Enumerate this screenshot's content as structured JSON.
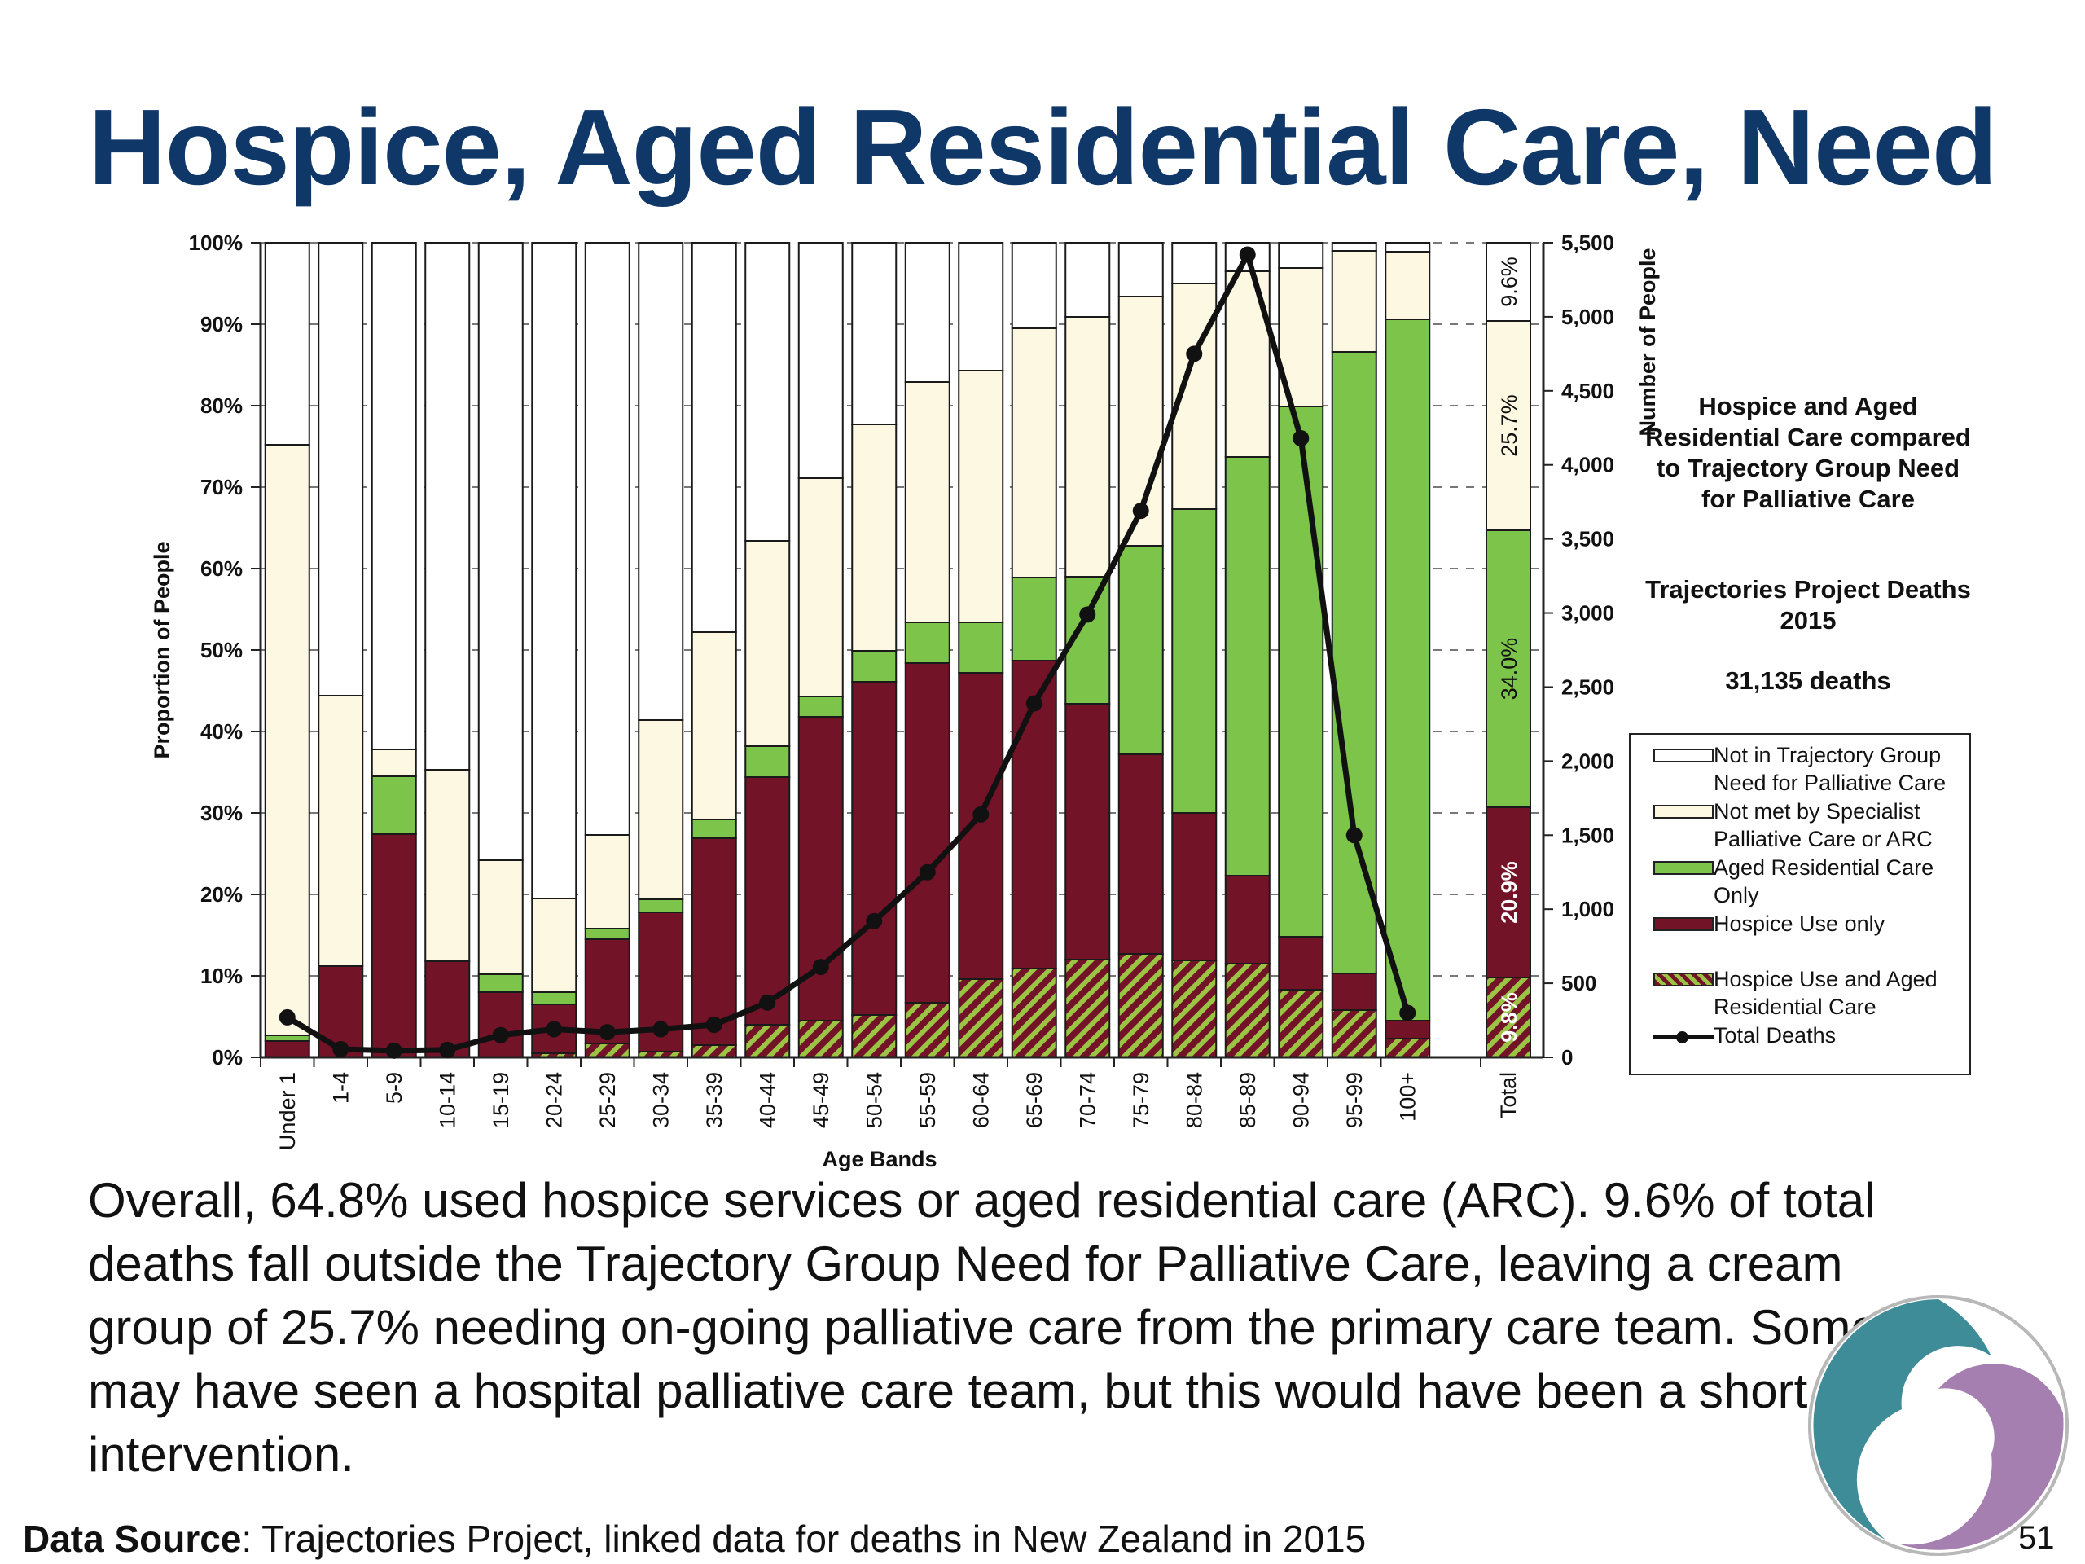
{
  "slide": {
    "title": "Hospice, Aged Residential Care, Need",
    "body_text": "Overall, 64.8% used hospice services or aged residential care (ARC). 9.6% of total deaths fall outside the Trajectory Group Need for Palliative Care, leaving a cream group of 25.7% needing on-going palliative care from the primary care team. Some may have seen a hospital palliative care team, but this would have been a short intervention.",
    "source_label": "Data Source",
    "source_text": ": Trajectories Project, linked data for deaths in New Zealand in 2015",
    "page_number": "51"
  },
  "side_panel": {
    "title": "Hospice and Aged Residential Care compared to Trajectory Group Need for Palliative Care",
    "subtitle": "Trajectories Project Deaths 2015",
    "deaths": "31,135 deaths"
  },
  "legend": [
    {
      "label": "Not in Trajectory Group Need for Palliative Care",
      "swatch": "white"
    },
    {
      "label": "Not met by Specialist Palliative Care or ARC",
      "swatch": "cream"
    },
    {
      "label": "Aged Residential Care Only",
      "swatch": "green"
    },
    {
      "label": "Hospice Use only",
      "swatch": "maroon"
    },
    {
      "label": "Hospice Use and Aged Residential Care",
      "swatch": "hatch"
    },
    {
      "label": "Total Deaths",
      "swatch": "line"
    }
  ],
  "colors": {
    "title": "#0f3768",
    "not_in_group": "#ffffff",
    "not_met": "#fdf8e1",
    "arc_only": "#7cc44a",
    "hospice_only": "#731328",
    "hatch_base": "#731328",
    "hatch_stripe": "#9bc445",
    "line": "#111111"
  },
  "chart_data": {
    "type": "bar",
    "stacked": true,
    "xlabel": "Age Bands",
    "ylabel": "Proportion of People",
    "y2label": "Number of People",
    "ylim": [
      0,
      100
    ],
    "y2lim": [
      0,
      5500
    ],
    "y_ticks": [
      "0%",
      "10%",
      "20%",
      "30%",
      "40%",
      "50%",
      "60%",
      "70%",
      "80%",
      "90%",
      "100%"
    ],
    "y2_ticks": [
      "0",
      "500",
      "1,000",
      "1,500",
      "2,000",
      "2,500",
      "3,000",
      "3,500",
      "4,000",
      "4,500",
      "5,000",
      "5,500"
    ],
    "categories": [
      "Under 1",
      "1-4",
      "5-9",
      "10-14",
      "15-19",
      "20-24",
      "25-29",
      "30-34",
      "35-39",
      "40-44",
      "45-49",
      "50-54",
      "55-59",
      "60-64",
      "65-69",
      "70-74",
      "75-79",
      "80-84",
      "85-89",
      "90-94",
      "95-99",
      "100+",
      "Total"
    ],
    "series": [
      {
        "name": "Hospice Use and Aged Residential Care",
        "values": [
          0,
          0,
          0,
          0,
          0,
          0.5,
          1.7,
          0.7,
          1.5,
          4,
          4.5,
          5.2,
          6.7,
          9.6,
          10.9,
          12,
          12.7,
          11.9,
          11.5,
          8.3,
          5.8,
          2.3,
          9.8
        ]
      },
      {
        "name": "Hospice Use only",
        "values": [
          2,
          11.2,
          27.4,
          11.8,
          8,
          6,
          12.8,
          17.1,
          25.4,
          30.4,
          37.3,
          40.9,
          41.7,
          37.6,
          37.8,
          31.4,
          24.5,
          18.1,
          10.8,
          6.5,
          4.5,
          2.2,
          20.9
        ]
      },
      {
        "name": "Aged Residential Care Only",
        "values": [
          0.7,
          0,
          7.1,
          0,
          2.2,
          1.5,
          1.3,
          1.6,
          2.3,
          3.8,
          2.5,
          3.8,
          5,
          6.2,
          10.2,
          15.6,
          25.6,
          37.3,
          51.4,
          65.1,
          76.3,
          86.1,
          34
        ]
      },
      {
        "name": "Not met by Specialist Palliative Care or ARC",
        "values": [
          72.5,
          33.2,
          3.3,
          23.5,
          14,
          11.5,
          11.5,
          22,
          23,
          25.2,
          26.8,
          27.8,
          29.5,
          30.9,
          30.6,
          31.9,
          30.6,
          27.7,
          22.8,
          17,
          12.4,
          8.3,
          25.7
        ]
      },
      {
        "name": "Not in Trajectory Group Need for Palliative Care",
        "values": [
          24.8,
          55.6,
          62.2,
          64.7,
          75.8,
          80.5,
          72.7,
          58.6,
          47.8,
          36.6,
          28.9,
          22.3,
          17.1,
          15.7,
          10.5,
          9.1,
          6.6,
          5,
          3.5,
          3.1,
          1,
          1.1,
          9.6
        ]
      }
    ],
    "total_labels": [
      "9.8%",
      "20.9%",
      "34.0%",
      "25.7%",
      "9.6%"
    ],
    "line_series": {
      "name": "Total Deaths",
      "values": [
        270,
        55,
        45,
        50,
        150,
        190,
        170,
        190,
        220,
        370,
        610,
        920,
        1250,
        1640,
        2390,
        2990,
        3690,
        4750,
        5420,
        4180,
        1500,
        300
      ]
    }
  }
}
